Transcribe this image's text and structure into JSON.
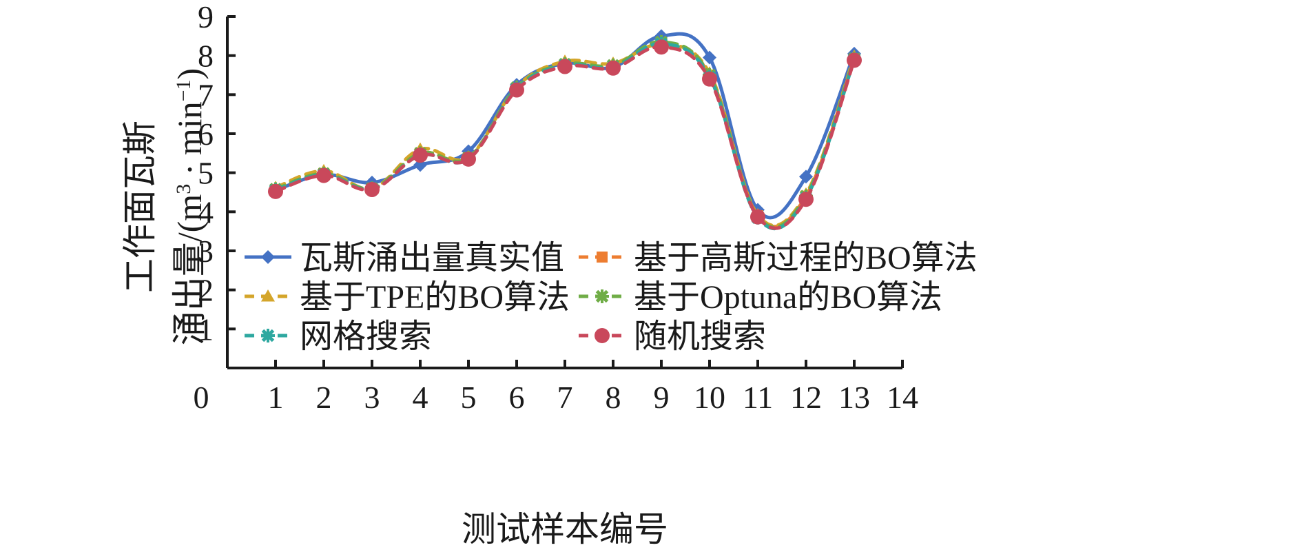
{
  "chart_data": {
    "type": "line",
    "title": "",
    "xlabel": "测试样本编号",
    "ylabel_line1": "工作面瓦斯",
    "ylabel_line2_prefix": "涌出量/(m",
    "ylabel_line2_sup1": "3",
    "ylabel_line2_mid": " · min",
    "ylabel_line2_sup2": "−1",
    "ylabel_line2_suffix": ")",
    "xlim": [
      0,
      14
    ],
    "ylim": [
      0,
      9
    ],
    "xticks": [
      "0",
      "1",
      "2",
      "3",
      "4",
      "5",
      "6",
      "7",
      "8",
      "9",
      "10",
      "11",
      "12",
      "13",
      "14"
    ],
    "yticks": [
      "1",
      "2",
      "3",
      "4",
      "5",
      "6",
      "7",
      "8",
      "9"
    ],
    "grid": false,
    "legend_position": "center-bottom inside plot",
    "x": [
      1,
      2,
      3,
      4,
      5,
      6,
      7,
      8,
      9,
      10,
      11,
      12,
      13
    ],
    "series": [
      {
        "name": "瓦斯涌出量真实值",
        "color": "#4472c4",
        "dash": "solid",
        "marker": "diamond",
        "values": [
          4.55,
          4.95,
          4.75,
          5.2,
          5.55,
          7.25,
          7.8,
          7.7,
          8.5,
          7.95,
          4.05,
          4.9,
          8.05
        ]
      },
      {
        "name": "基于高斯过程的BO算法",
        "color": "#ed7d31",
        "dash": "dashed",
        "marker": "square",
        "values": [
          4.57,
          4.98,
          4.6,
          5.5,
          5.38,
          7.15,
          7.75,
          7.72,
          8.25,
          7.5,
          3.9,
          4.4,
          7.92
        ]
      },
      {
        "name": "基于TPE的BO算法",
        "color": "#d4a52a",
        "dash": "dashed",
        "marker": "triangle",
        "values": [
          4.62,
          5.05,
          4.6,
          5.6,
          5.4,
          7.2,
          7.85,
          7.8,
          8.28,
          7.55,
          3.92,
          4.45,
          7.98
        ]
      },
      {
        "name": "基于Optuna的BO算法",
        "color": "#70ad47",
        "dash": "dashed",
        "marker": "cross",
        "values": [
          4.58,
          4.98,
          4.6,
          5.5,
          5.38,
          7.18,
          7.78,
          7.75,
          8.35,
          7.5,
          3.88,
          4.4,
          7.92
        ]
      },
      {
        "name": "网格搜索",
        "color": "#2ea8a0",
        "dash": "dashed",
        "marker": "cross",
        "values": [
          4.55,
          4.95,
          4.58,
          5.45,
          5.35,
          7.15,
          7.75,
          7.7,
          8.3,
          7.45,
          3.85,
          4.35,
          7.9
        ]
      },
      {
        "name": "随机搜索",
        "color": "#c9485b",
        "dash": "dashed",
        "marker": "circle",
        "values": [
          4.52,
          4.93,
          4.57,
          5.45,
          5.35,
          7.12,
          7.72,
          7.68,
          8.22,
          7.4,
          3.87,
          4.32,
          7.88
        ]
      }
    ]
  }
}
